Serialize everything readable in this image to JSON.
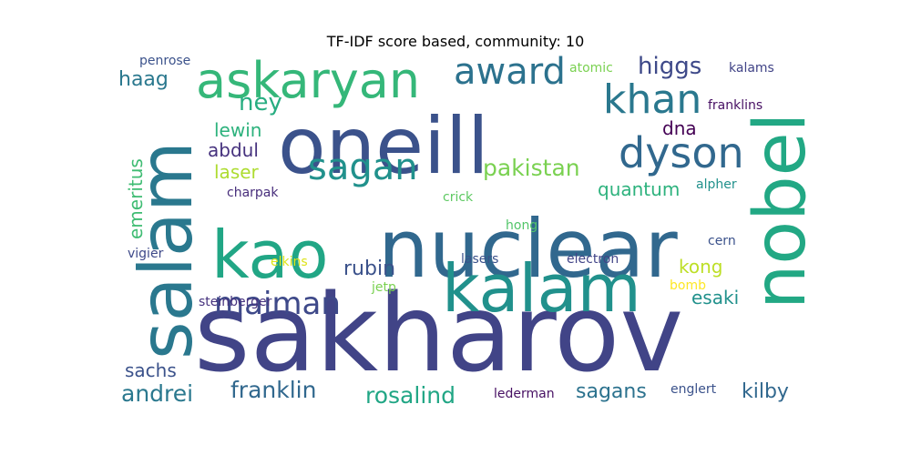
{
  "chart_data": {
    "type": "wordcloud",
    "title": "TF-IDF score based, community: 10",
    "words": [
      {
        "text": "sakharov",
        "color": "#414487"
      },
      {
        "text": "nuclear",
        "color": "#31688e"
      },
      {
        "text": "oneill",
        "color": "#3b528b"
      },
      {
        "text": "kao",
        "color": "#21a685"
      },
      {
        "text": "salam",
        "color": "#2a788e"
      },
      {
        "text": "nobel",
        "color": "#22a884"
      },
      {
        "text": "kalam",
        "color": "#21918c"
      },
      {
        "text": "askaryan",
        "color": "#35b779"
      },
      {
        "text": "dyson",
        "color": "#31688e"
      },
      {
        "text": "khan",
        "color": "#2a788e"
      },
      {
        "text": "award",
        "color": "#2c728e"
      },
      {
        "text": "maiman",
        "color": "#3e4989"
      },
      {
        "text": "sagan",
        "color": "#21918c"
      },
      {
        "text": "higgs",
        "color": "#3e4989"
      },
      {
        "text": "pakistan",
        "color": "#7ad151"
      },
      {
        "text": "ney",
        "color": "#27ad81"
      },
      {
        "text": "andrei",
        "color": "#2a788e"
      },
      {
        "text": "rosalind",
        "color": "#21a685"
      },
      {
        "text": "franklin",
        "color": "#31688e"
      },
      {
        "text": "sagans",
        "color": "#2c728e"
      },
      {
        "text": "kilby",
        "color": "#31688e"
      },
      {
        "text": "rubin",
        "color": "#3b528b"
      },
      {
        "text": "haag",
        "color": "#2a788e"
      },
      {
        "text": "quantum",
        "color": "#2db27d"
      },
      {
        "text": "kong",
        "color": "#bddf26"
      },
      {
        "text": "esaki",
        "color": "#21918c"
      },
      {
        "text": "laser",
        "color": "#addc30"
      },
      {
        "text": "lewin",
        "color": "#2db27d"
      },
      {
        "text": "abdul",
        "color": "#46327e"
      },
      {
        "text": "sachs",
        "color": "#3b528b"
      },
      {
        "text": "emeritus",
        "color": "#3fbc73"
      },
      {
        "text": "dna",
        "color": "#440154"
      },
      {
        "text": "penrose",
        "color": "#3b528b"
      },
      {
        "text": "atomic",
        "color": "#7ad151"
      },
      {
        "text": "kalams",
        "color": "#414487"
      },
      {
        "text": "franklins",
        "color": "#471063"
      },
      {
        "text": "alpher",
        "color": "#21918c"
      },
      {
        "text": "charpak",
        "color": "#472d7b"
      },
      {
        "text": "crick",
        "color": "#5ec962"
      },
      {
        "text": "hong",
        "color": "#52c569"
      },
      {
        "text": "cern",
        "color": "#3b528b"
      },
      {
        "text": "vigier",
        "color": "#3e4989"
      },
      {
        "text": "elkins",
        "color": "#dde318"
      },
      {
        "text": "lasers",
        "color": "#3b528b"
      },
      {
        "text": "electron",
        "color": "#414487"
      },
      {
        "text": "steinberger",
        "color": "#46327e"
      },
      {
        "text": "jetp",
        "color": "#7ad151"
      },
      {
        "text": "bomb",
        "color": "#fde725"
      },
      {
        "text": "lederman",
        "color": "#471063"
      },
      {
        "text": "englert",
        "color": "#3b528b"
      }
    ]
  }
}
